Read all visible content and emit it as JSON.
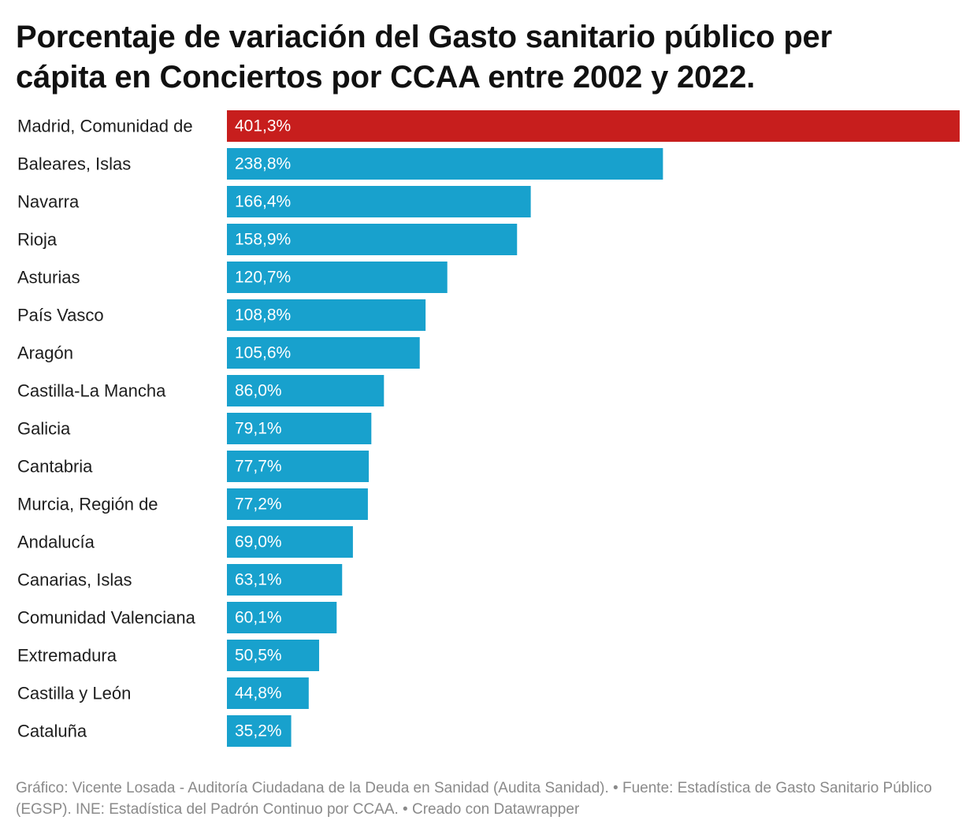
{
  "chart_data": {
    "type": "bar",
    "orientation": "horizontal",
    "title": "Porcentaje de variación del Gasto sanitario público per cápita en Conciertos por CCAA entre 2002 y 2022.",
    "categories": [
      "Madrid, Comunidad de",
      "Baleares, Islas",
      "Navarra",
      "Rioja",
      "Asturias",
      "País Vasco",
      "Aragón",
      "Castilla-La Mancha",
      "Galicia",
      "Cantabria",
      "Murcia, Región de",
      "Andalucía",
      "Canarias, Islas",
      "Comunidad Valenciana",
      "Extremadura",
      "Castilla y León",
      "Cataluña"
    ],
    "values": [
      401.3,
      238.8,
      166.4,
      158.9,
      120.7,
      108.8,
      105.6,
      86.0,
      79.1,
      77.7,
      77.2,
      69.0,
      63.1,
      60.1,
      50.5,
      44.8,
      35.2
    ],
    "value_labels": [
      "401,3%",
      "238,8%",
      "166,4%",
      "158,9%",
      "120,7%",
      "108,8%",
      "105,6%",
      "86,0%",
      "79,1%",
      "77,7%",
      "77,2%",
      "69,0%",
      "63,1%",
      "60,1%",
      "50,5%",
      "44,8%",
      "35,2%"
    ],
    "highlight_index": 0,
    "colors": {
      "highlight": "#c71e1d",
      "bar": "#18a1cd",
      "label_inside": "#ffffff",
      "label_outside": "#1d1d1d"
    },
    "xlim": [
      0,
      401.3
    ],
    "grid": false,
    "legend": "none"
  },
  "footer": {
    "text": "Gráfico: Vicente Losada - Auditoría Ciudadana de la Deuda en Sanidad (Audita Sanidad). • Fuente: Estadística de Gasto Sanitario Público (EGSP). INE: Estadística del Padrón Continuo por CCAA. • Creado con Datawrapper"
  }
}
